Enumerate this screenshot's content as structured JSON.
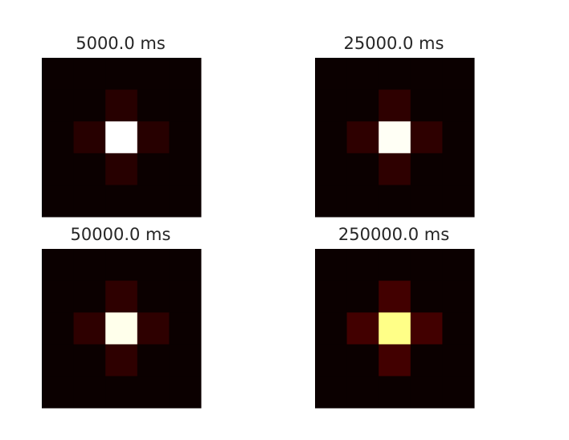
{
  "chart_data": [
    {
      "type": "heatmap",
      "title": "5000.0 ms",
      "grid": false,
      "rows": 5,
      "cols": 5,
      "colormap": "hot",
      "values": [
        [
          0.0,
          0.0,
          0.0,
          0.0,
          0.0
        ],
        [
          0.0,
          0.0,
          0.04,
          0.0,
          0.0
        ],
        [
          0.0,
          0.04,
          1.0,
          0.04,
          0.0
        ],
        [
          0.0,
          0.0,
          0.04,
          0.0,
          0.0
        ],
        [
          0.0,
          0.0,
          0.0,
          0.0,
          0.0
        ]
      ]
    },
    {
      "type": "heatmap",
      "title": "25000.0 ms",
      "grid": false,
      "rows": 5,
      "cols": 5,
      "colormap": "hot",
      "values": [
        [
          0.0,
          0.0,
          0.0,
          0.0,
          0.0
        ],
        [
          0.0,
          0.0,
          0.05,
          0.0,
          0.0
        ],
        [
          0.0,
          0.05,
          0.99,
          0.05,
          0.0
        ],
        [
          0.0,
          0.0,
          0.05,
          0.0,
          0.0
        ],
        [
          0.0,
          0.0,
          0.0,
          0.0,
          0.0
        ]
      ]
    },
    {
      "type": "heatmap",
      "title": "50000.0 ms",
      "grid": false,
      "rows": 5,
      "cols": 5,
      "colormap": "hot",
      "values": [
        [
          0.0,
          0.0,
          0.0,
          0.0,
          0.0
        ],
        [
          0.0,
          0.0,
          0.05,
          0.0,
          0.0
        ],
        [
          0.0,
          0.05,
          0.98,
          0.05,
          0.0
        ],
        [
          0.0,
          0.0,
          0.05,
          0.0,
          0.0
        ],
        [
          0.0,
          0.0,
          0.0,
          0.0,
          0.0
        ]
      ]
    },
    {
      "type": "heatmap",
      "title": "250000.0 ms",
      "grid": false,
      "rows": 5,
      "cols": 5,
      "colormap": "hot",
      "values": [
        [
          0.0,
          0.0,
          0.0,
          0.0,
          0.0
        ],
        [
          0.0,
          0.0,
          0.08,
          0.0,
          0.0
        ],
        [
          0.0,
          0.08,
          0.88,
          0.08,
          0.0
        ],
        [
          0.0,
          0.0,
          0.08,
          0.0,
          0.0
        ],
        [
          0.0,
          0.0,
          0.0,
          0.0,
          0.0
        ]
      ]
    }
  ]
}
